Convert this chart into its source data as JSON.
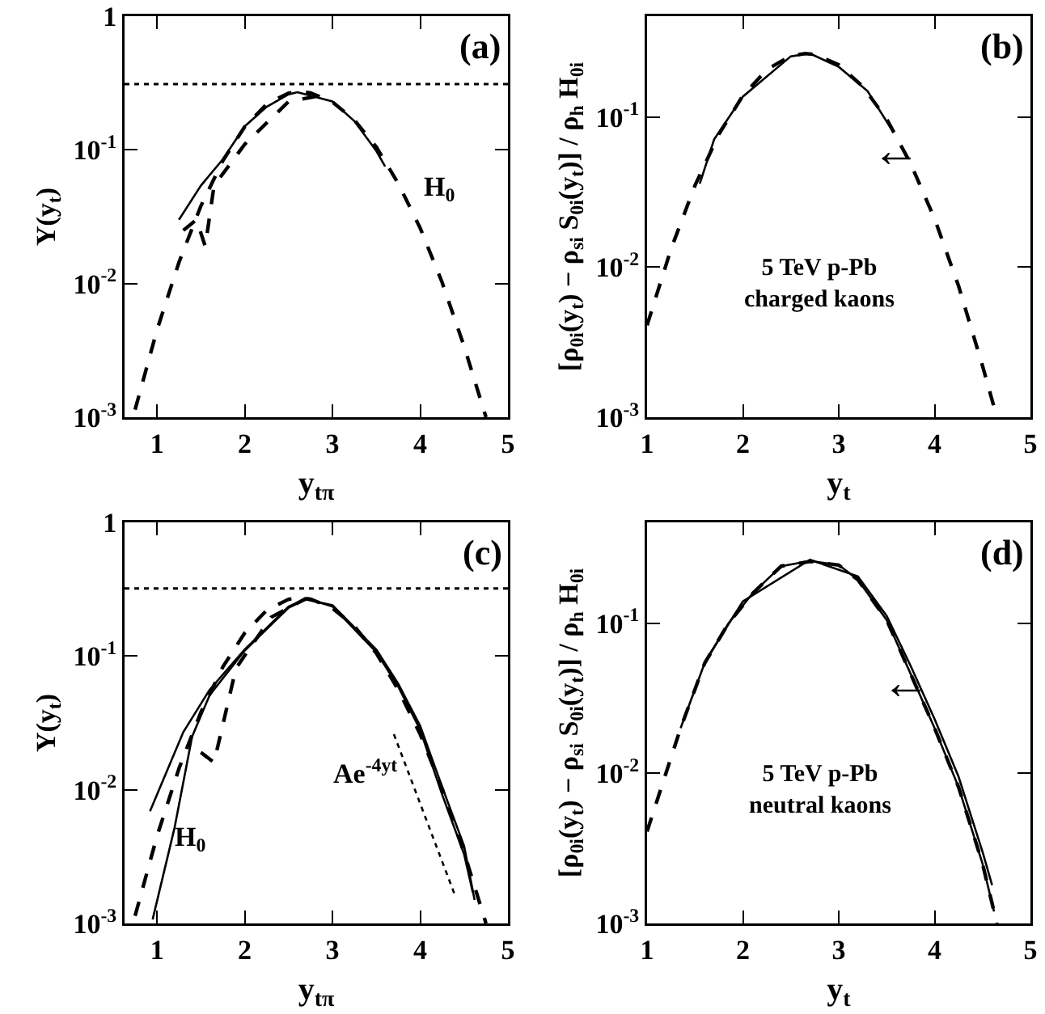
{
  "chart_data": [
    {
      "type": "line",
      "log": "y",
      "grid": false,
      "xlabel": "y$_{tπ}$",
      "ylabel": "Y(y$_{t}$)",
      "xlim": [
        0.63,
        5
      ],
      "xticks": [
        1,
        2,
        3,
        4,
        5
      ],
      "ylim": [
        0.001,
        1
      ],
      "yticks": [
        {
          "value": 0.001,
          "label": "10$^{-3}$"
        },
        {
          "value": 0.01,
          "label": "10$^{-2}$"
        },
        {
          "value": 0.1,
          "label": "10$^{-1}$"
        },
        1
      ],
      "ref_lines": [
        {
          "axis": "y",
          "value": 0.31,
          "line_style": "dotted",
          "color": "#000000"
        }
      ],
      "annotations": [
        "(a)",
        "H$_{0}$"
      ],
      "series": [
        {
          "color": "#000000",
          "line_style": "dashed",
          "x": [
            0.75,
            1.0,
            1.25,
            1.5,
            1.75,
            2.0,
            2.25,
            2.5,
            2.62,
            2.75,
            3.0,
            3.25,
            3.5,
            3.75,
            4.0,
            4.25,
            4.5,
            4.75
          ],
          "values": [
            0.00114,
            0.0045,
            0.0144,
            0.038,
            0.083,
            0.149,
            0.22,
            0.266,
            0.272,
            0.267,
            0.228,
            0.167,
            0.105,
            0.056,
            0.026,
            0.0102,
            0.0034,
            0.001
          ]
        },
        {
          "color": "#000000",
          "line_style": "solid",
          "x": [
            1.25,
            1.5,
            1.75,
            2.0,
            2.25,
            2.5,
            2.6,
            3.0,
            3.25,
            3.5,
            3.6
          ],
          "values": [
            0.03,
            0.054,
            0.085,
            0.15,
            0.21,
            0.26,
            0.27,
            0.23,
            0.164,
            0.098,
            0.075
          ]
        },
        {
          "color": "#000000",
          "line_style": "dashed",
          "x": [
            1.3,
            1.45,
            1.55,
            1.65,
            2.0,
            2.5,
            2.8
          ],
          "values": [
            0.025,
            0.03,
            0.019,
            0.054,
            0.11,
            0.23,
            0.25
          ]
        }
      ]
    },
    {
      "type": "line",
      "log": "y",
      "grid": false,
      "xlabel": "y$_{t}$",
      "ylabel": "[ρ$_{0i}$(y$_{t}$) − ρ$_{si}$ S$_{0i}$(y$_{t}$)] / ρ$_{h}$ H$_{0i}$",
      "xlim": [
        1,
        5
      ],
      "xticks": [
        1,
        2,
        3,
        4,
        5
      ],
      "ylim": [
        0.001,
        0.47
      ],
      "yticks": [
        {
          "value": 0.001,
          "label": "10$^{-3}$"
        },
        {
          "value": 0.01,
          "label": "10$^{-2}$"
        },
        {
          "value": 0.1,
          "label": "10$^{-1}$"
        }
      ],
      "annotations": [
        "(b)",
        "5 TeV p-Pb\ncharged kaons",
        {
          "text": "←",
          "x": 3.6,
          "y": 0.059
        }
      ],
      "series": [
        {
          "color": "#000000",
          "line_style": "dashed",
          "x": [
            1.0,
            1.25,
            1.5,
            1.75,
            2.0,
            2.25,
            2.5,
            2.65,
            2.75,
            3.0,
            3.25,
            3.5,
            3.75,
            4.0,
            4.25,
            4.5,
            4.65
          ],
          "values": [
            0.0041,
            0.0132,
            0.035,
            0.077,
            0.139,
            0.207,
            0.256,
            0.265,
            0.261,
            0.223,
            0.16,
            0.097,
            0.049,
            0.021,
            0.0075,
            0.0022,
            0.001
          ]
        },
        {
          "color": "#000000",
          "line_style": "solid",
          "x": [
            1.55,
            1.7,
            2.0,
            2.5,
            2.7,
            3.0,
            3.3,
            3.55
          ],
          "values": [
            0.036,
            0.071,
            0.137,
            0.254,
            0.265,
            0.216,
            0.149,
            0.083
          ]
        }
      ]
    },
    {
      "type": "line",
      "log": "y",
      "grid": false,
      "xlabel": "y$_{tπ}$",
      "ylabel": "Y(y$_{t}$)",
      "xlim": [
        0.63,
        5
      ],
      "xticks": [
        1,
        2,
        3,
        4,
        5
      ],
      "ylim": [
        0.001,
        1
      ],
      "yticks": [
        {
          "value": 0.001,
          "label": "10$^{-3}$"
        },
        {
          "value": 0.01,
          "label": "10$^{-2}$"
        },
        {
          "value": 0.1,
          "label": "10$^{-1}$"
        },
        1
      ],
      "ref_lines": [
        {
          "axis": "y",
          "value": 0.32,
          "line_style": "dotted",
          "color": "#000000"
        }
      ],
      "annotations": [
        "(c)",
        "H$_{0}$",
        "Ae$^{-4yt}$"
      ],
      "series": [
        {
          "color": "#000000",
          "line_style": "dashed",
          "x": [
            0.75,
            1.0,
            1.25,
            1.5,
            1.75,
            2.0,
            2.25,
            2.5,
            2.62,
            2.75,
            3.0,
            3.25,
            3.5,
            3.75,
            4.0,
            4.25,
            4.5,
            4.75
          ],
          "values": [
            0.00114,
            0.0045,
            0.0144,
            0.038,
            0.083,
            0.149,
            0.22,
            0.266,
            0.272,
            0.267,
            0.228,
            0.167,
            0.105,
            0.056,
            0.026,
            0.0102,
            0.0034,
            0.001
          ]
        },
        {
          "color": "#000000",
          "line_style": "solid",
          "x": [
            0.92,
            1.3,
            1.6,
            2.0,
            2.5,
            2.7,
            3.0,
            3.5,
            3.75,
            4.0,
            4.25,
            4.5,
            4.6
          ],
          "values": [
            0.0069,
            0.027,
            0.056,
            0.112,
            0.235,
            0.27,
            0.235,
            0.107,
            0.059,
            0.028,
            0.0092,
            0.0033,
            0.0017
          ]
        },
        {
          "color": "#000000",
          "line_style": "solid",
          "x": [
            0.95,
            1.2,
            1.4,
            1.6,
            2.0,
            2.5,
            2.7,
            3.0,
            3.5,
            3.75,
            4.0,
            4.25,
            4.5,
            4.62
          ],
          "values": [
            0.00107,
            0.0052,
            0.025,
            0.051,
            0.11,
            0.23,
            0.265,
            0.24,
            0.112,
            0.062,
            0.03,
            0.0105,
            0.0038,
            0.0015
          ]
        },
        {
          "color": "#000000",
          "line_style": "dashed",
          "x": [
            1.5,
            1.65,
            1.9,
            2.3,
            2.7
          ],
          "values": [
            0.019,
            0.016,
            0.081,
            0.195,
            0.27
          ]
        },
        {
          "color": "#000000",
          "line_style": "dotted",
          "x": [
            3.7,
            4.4
          ],
          "values": [
            0.026,
            0.0016
          ]
        }
      ]
    },
    {
      "type": "line",
      "log": "y",
      "grid": false,
      "xlabel": "y$_{t}$",
      "ylabel": "[ρ$_{0i}$(y$_{t}$) − ρ$_{si}$ S$_{0i}$(y$_{t}$)] / ρ$_{h}$ H$_{0i}$",
      "xlim": [
        1,
        5
      ],
      "xticks": [
        1,
        2,
        3,
        4,
        5
      ],
      "ylim": [
        0.001,
        0.47
      ],
      "yticks": [
        {
          "value": 0.001,
          "label": "10$^{-3}$"
        },
        {
          "value": 0.01,
          "label": "10$^{-2}$"
        },
        {
          "value": 0.1,
          "label": "10$^{-1}$"
        }
      ],
      "annotations": [
        "(d)",
        "5 TeV p-Pb\nneutral kaons",
        {
          "text": "←",
          "x": 3.7,
          "y": 0.04
        }
      ],
      "series": [
        {
          "color": "#000000",
          "line_style": "dashed",
          "x": [
            1.0,
            1.15,
            1.35,
            1.6,
            1.85,
            2.1,
            2.4,
            2.7,
            3.0,
            3.2,
            3.5,
            3.75,
            4.0,
            4.25,
            4.5,
            4.65
          ],
          "values": [
            0.0041,
            0.0081,
            0.02,
            0.054,
            0.1,
            0.158,
            0.24,
            0.258,
            0.244,
            0.195,
            0.105,
            0.046,
            0.02,
            0.0081,
            0.0025,
            0.001
          ]
        },
        {
          "color": "#000000",
          "line_style": "solid",
          "x": [
            1.35,
            1.6,
            1.85,
            2.1,
            2.4,
            2.7,
            3.0,
            3.2,
            3.5,
            3.75,
            4.0,
            4.25,
            4.5,
            4.62
          ],
          "values": [
            0.02,
            0.054,
            0.1,
            0.158,
            0.24,
            0.26,
            0.244,
            0.195,
            0.105,
            0.046,
            0.02,
            0.0081,
            0.0025,
            0.0012
          ]
        },
        {
          "color": "#000000",
          "line_style": "solid",
          "x": [
            1.6,
            2.0,
            2.7,
            3.2,
            3.5,
            3.75,
            4.0,
            4.25,
            4.5,
            4.6
          ],
          "values": [
            0.055,
            0.14,
            0.265,
            0.205,
            0.112,
            0.052,
            0.023,
            0.0095,
            0.003,
            0.0018
          ]
        }
      ]
    }
  ]
}
